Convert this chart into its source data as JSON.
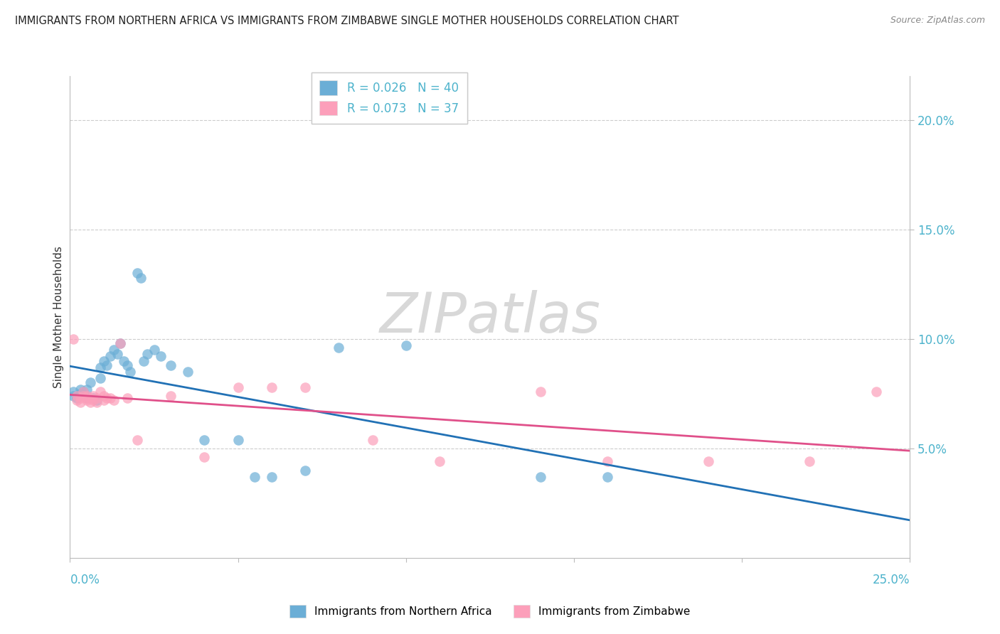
{
  "title": "IMMIGRANTS FROM NORTHERN AFRICA VS IMMIGRANTS FROM ZIMBABWE SINGLE MOTHER HOUSEHOLDS CORRELATION CHART",
  "source": "Source: ZipAtlas.com",
  "ylabel": "Single Mother Households",
  "legend_blue_r": "R = 0.026",
  "legend_blue_n": "N = 40",
  "legend_pink_r": "R = 0.073",
  "legend_pink_n": "N = 37",
  "legend_label_blue": "Immigrants from Northern Africa",
  "legend_label_pink": "Immigrants from Zimbabwe",
  "blue_color": "#6baed6",
  "pink_color": "#fc9fba",
  "blue_line_color": "#2171b5",
  "pink_line_color": "#e0508a",
  "watermark_text": "ZIPatlas",
  "blue_x": [
    0.001,
    0.001,
    0.002,
    0.003,
    0.003,
    0.004,
    0.004,
    0.005,
    0.005,
    0.006,
    0.007,
    0.008,
    0.009,
    0.009,
    0.01,
    0.011,
    0.012,
    0.013,
    0.014,
    0.015,
    0.016,
    0.017,
    0.018,
    0.02,
    0.021,
    0.022,
    0.023,
    0.025,
    0.027,
    0.03,
    0.035,
    0.04,
    0.05,
    0.055,
    0.06,
    0.07,
    0.08,
    0.1,
    0.14,
    0.16
  ],
  "blue_y": [
    0.074,
    0.076,
    0.073,
    0.075,
    0.077,
    0.074,
    0.076,
    0.073,
    0.077,
    0.08,
    0.073,
    0.072,
    0.087,
    0.082,
    0.09,
    0.088,
    0.092,
    0.095,
    0.093,
    0.098,
    0.09,
    0.088,
    0.085,
    0.13,
    0.128,
    0.09,
    0.093,
    0.095,
    0.092,
    0.088,
    0.085,
    0.054,
    0.054,
    0.037,
    0.037,
    0.04,
    0.096,
    0.097,
    0.037,
    0.037
  ],
  "pink_x": [
    0.001,
    0.002,
    0.002,
    0.003,
    0.003,
    0.004,
    0.004,
    0.005,
    0.005,
    0.005,
    0.006,
    0.006,
    0.007,
    0.007,
    0.008,
    0.008,
    0.009,
    0.01,
    0.01,
    0.011,
    0.012,
    0.013,
    0.015,
    0.017,
    0.02,
    0.03,
    0.04,
    0.05,
    0.06,
    0.07,
    0.09,
    0.11,
    0.14,
    0.16,
    0.19,
    0.22,
    0.24
  ],
  "pink_y": [
    0.1,
    0.074,
    0.072,
    0.073,
    0.071,
    0.074,
    0.076,
    0.073,
    0.074,
    0.072,
    0.073,
    0.071,
    0.074,
    0.072,
    0.073,
    0.071,
    0.076,
    0.074,
    0.072,
    0.073,
    0.073,
    0.072,
    0.098,
    0.073,
    0.054,
    0.074,
    0.046,
    0.078,
    0.078,
    0.078,
    0.054,
    0.044,
    0.076,
    0.044,
    0.044,
    0.044,
    0.076
  ],
  "xlim": [
    0.0,
    0.25
  ],
  "ylim": [
    0.0,
    0.22
  ],
  "yticks": [
    0.05,
    0.1,
    0.15,
    0.2
  ],
  "ytick_labels": [
    "5.0%",
    "10.0%",
    "15.0%",
    "20.0%"
  ]
}
